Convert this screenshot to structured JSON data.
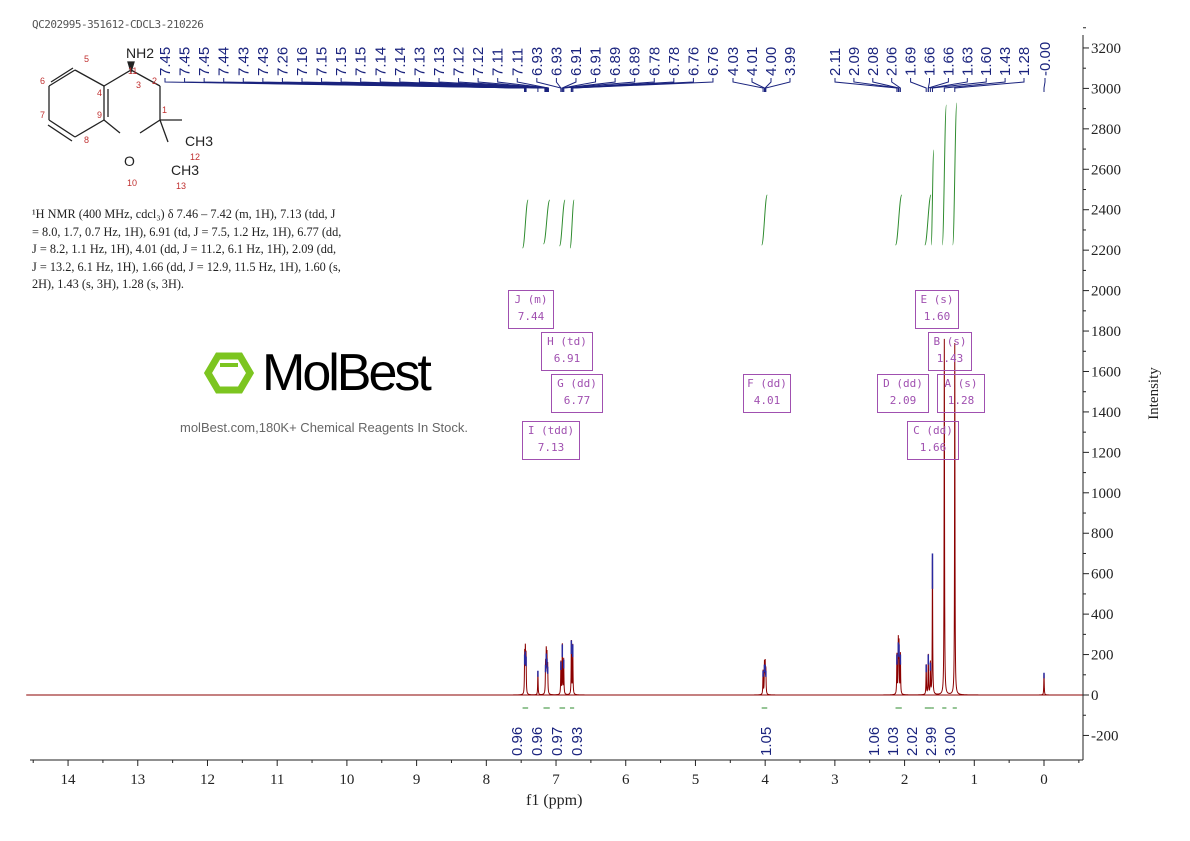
{
  "sample_id": "QC202995-351612-CDCL3-210226",
  "structure": {
    "amine": "NH2",
    "methyl_a": "CH3",
    "methyl_b": "CH3",
    "oxygen": "O",
    "atom_numbers": [
      "1",
      "2",
      "3",
      "4",
      "5",
      "6",
      "7",
      "8",
      "9",
      "10",
      "11",
      "12",
      "13"
    ]
  },
  "nmr_description": "¹H NMR (400 MHz, cdcl₃) δ 7.46 – 7.42 (m, 1H), 7.13 (tdd, J = 8.0, 1.7, 0.7 Hz, 1H), 6.91 (td, J = 7.5, 1.2 Hz, 1H), 6.77 (dd, J = 8.2, 1.1 Hz, 1H), 4.01 (dd, J = 11.2, 6.1 Hz, 1H), 2.09 (dd, J = 13.2, 6.1 Hz, 1H), 1.66 (dd, J = 12.9, 11.5 Hz, 1H), 1.60 (s, 2H), 1.43 (s, 3H), 1.28 (s, 3H).",
  "watermark": {
    "logo": "MolBest",
    "text": "molBest.com,180K+ Chemical Reagents In Stock."
  },
  "colors": {
    "spectrum": "#8b0000",
    "peak_top": "#2a2aa0",
    "peak_labels": "#1a237e",
    "integral": "#2e8b2e",
    "multiplet_box": "#a050b0",
    "logo_green": "#7cc520"
  },
  "chart_data": {
    "type": "line",
    "xlabel": "f1 (ppm)",
    "ylabel": "Intensity",
    "xlim": [
      14.6,
      -0.5
    ],
    "ylim": [
      -300,
      3300
    ],
    "x_ticks": [
      "14",
      "13",
      "12",
      "11",
      "10",
      "9",
      "8",
      "7",
      "6",
      "5",
      "4",
      "3",
      "2",
      "1",
      "0"
    ],
    "y_ticks": [
      "3200",
      "3000",
      "2800",
      "2600",
      "2400",
      "2200",
      "2000",
      "1800",
      "1600",
      "1400",
      "1200",
      "1000",
      "800",
      "600",
      "400",
      "200",
      "0",
      "-200"
    ],
    "peak_labels": [
      [
        "7.45",
        "7.45",
        "7.45",
        "7.44",
        "7.43",
        "7.43",
        "7.26",
        "7.16",
        "7.15",
        "7.15",
        "7.15",
        "7.14",
        "7.14",
        "7.13",
        "7.13",
        "7.12",
        "7.12",
        "7.11",
        "7.11",
        "6.93",
        "6.93",
        "6.91",
        "6.91",
        "6.89",
        "6.89",
        "6.78",
        "6.78",
        "6.76",
        "6.76"
      ],
      [
        "4.03",
        "4.01",
        "4.00",
        "3.99"
      ],
      [
        "2.11",
        "2.09",
        "2.08",
        "2.06",
        "1.69",
        "1.66",
        "1.66",
        "1.63",
        "1.60",
        "1.43",
        "1.28"
      ],
      [
        "-0.00"
      ]
    ],
    "peaks": [
      {
        "ppm": 7.45,
        "y": 200
      },
      {
        "ppm": 7.44,
        "y": 215
      },
      {
        "ppm": 7.43,
        "y": 190
      },
      {
        "ppm": 7.26,
        "y": 120
      },
      {
        "ppm": 7.15,
        "y": 150
      },
      {
        "ppm": 7.14,
        "y": 205
      },
      {
        "ppm": 7.13,
        "y": 180
      },
      {
        "ppm": 7.12,
        "y": 140
      },
      {
        "ppm": 6.93,
        "y": 165
      },
      {
        "ppm": 6.91,
        "y": 250
      },
      {
        "ppm": 6.89,
        "y": 175
      },
      {
        "ppm": 6.78,
        "y": 270
      },
      {
        "ppm": 6.76,
        "y": 250
      },
      {
        "ppm": 4.03,
        "y": 120
      },
      {
        "ppm": 4.01,
        "y": 150
      },
      {
        "ppm": 4.0,
        "y": 150
      },
      {
        "ppm": 3.99,
        "y": 120
      },
      {
        "ppm": 2.11,
        "y": 200
      },
      {
        "ppm": 2.09,
        "y": 260
      },
      {
        "ppm": 2.08,
        "y": 250
      },
      {
        "ppm": 2.06,
        "y": 200
      },
      {
        "ppm": 1.69,
        "y": 150
      },
      {
        "ppm": 1.66,
        "y": 200
      },
      {
        "ppm": 1.63,
        "y": 160
      },
      {
        "ppm": 1.6,
        "y": 700
      },
      {
        "ppm": 1.43,
        "y": 1760
      },
      {
        "ppm": 1.28,
        "y": 1740
      },
      {
        "ppm": 0.0,
        "y": 110
      }
    ],
    "integrals": [
      {
        "from": 7.48,
        "to": 7.4,
        "value": "0.96"
      },
      {
        "from": 7.18,
        "to": 7.09,
        "value": "0.96"
      },
      {
        "from": 6.95,
        "to": 6.87,
        "value": "0.97"
      },
      {
        "from": 6.8,
        "to": 6.74,
        "value": "0.93"
      },
      {
        "from": 4.05,
        "to": 3.97,
        "value": "1.05"
      },
      {
        "from": 2.13,
        "to": 2.04,
        "value": "1.06"
      },
      {
        "from": 1.71,
        "to": 1.62,
        "value": "1.03"
      },
      {
        "from": 1.62,
        "to": 1.58,
        "value": "2.02"
      },
      {
        "from": 1.46,
        "to": 1.4,
        "value": "2.99"
      },
      {
        "from": 1.31,
        "to": 1.25,
        "value": "3.00"
      }
    ],
    "multiplets": [
      {
        "id": "J",
        "type": "(m)",
        "shift": "7.44"
      },
      {
        "id": "H",
        "type": "(td)",
        "shift": "6.91"
      },
      {
        "id": "G",
        "type": "(dd)",
        "shift": "6.77"
      },
      {
        "id": "I",
        "type": "(tdd)",
        "shift": "7.13"
      },
      {
        "id": "F",
        "type": "(dd)",
        "shift": "4.01"
      },
      {
        "id": "D",
        "type": "(dd)",
        "shift": "2.09"
      },
      {
        "id": "E",
        "type": "(s)",
        "shift": "1.60"
      },
      {
        "id": "B",
        "type": "(s)",
        "shift": "1.43"
      },
      {
        "id": "A",
        "type": "(s)",
        "shift": "1.28"
      },
      {
        "id": "C",
        "type": "(dd)",
        "shift": "1.66"
      }
    ]
  }
}
